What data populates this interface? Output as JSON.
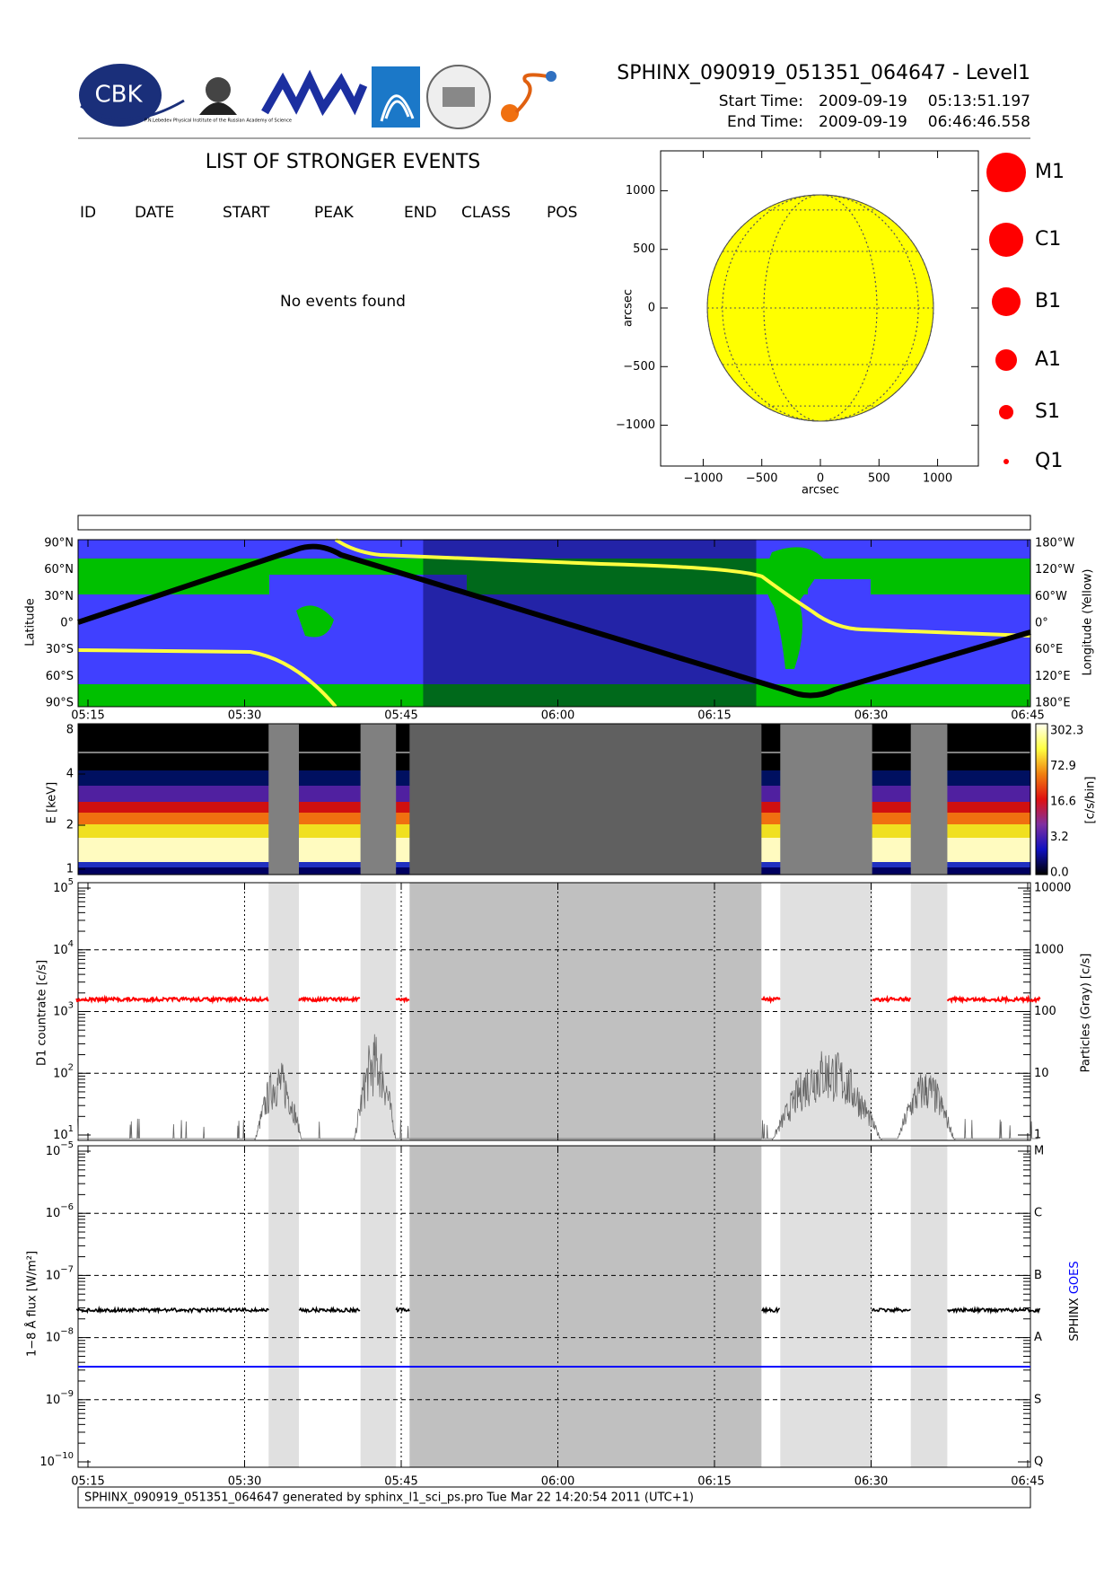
{
  "header": {
    "logo_text": "CBK",
    "lebedev_text": "P.N.Lebedev Physical Institute of the Russian Academy of Science",
    "title": "SPHINX_090919_051351_064647 - Level1",
    "start_label": "Start Time:",
    "start_date": "2009-09-19",
    "start_time": "05:13:51.197",
    "end_label": "End Time:",
    "end_date": "2009-09-19",
    "end_time": "06:46:46.558"
  },
  "events": {
    "title": "LIST OF STRONGER EVENTS",
    "columns": [
      "ID",
      "DATE",
      "START",
      "PEAK",
      "END",
      "CLASS",
      "POS"
    ],
    "message": "No events found"
  },
  "sun_map": {
    "yticks": [
      "1000",
      "500",
      "0",
      "−500",
      "−1000"
    ],
    "xticks": [
      "−1000",
      "−500",
      "0",
      "500",
      "1000"
    ],
    "xlabel": "arcsec",
    "ylabel": "arcsec",
    "classes": [
      "M1",
      "C1",
      "B1",
      "A1",
      "S1",
      "Q1"
    ]
  },
  "time_ticks": [
    "05:15",
    "05:30",
    "05:45",
    "06:00",
    "06:15",
    "06:30",
    "06:45"
  ],
  "orbit": {
    "lat_ticks": [
      "90°N",
      "60°N",
      "30°N",
      "0°",
      "30°S",
      "60°S",
      "90°S"
    ],
    "lon_ticks": [
      "180°W",
      "120°W",
      "60°W",
      "0°",
      "60°E",
      "120°E",
      "180°E"
    ],
    "ylabel": "Latitude",
    "y2label": "Longitude (Yellow)"
  },
  "spectrogram": {
    "yticks": [
      "8",
      "4",
      "2",
      "1"
    ],
    "ylabel": "E [keV]",
    "colorbar_ticks": [
      "302.3",
      "72.9",
      "16.6",
      "3.2",
      "0.0"
    ],
    "colorbar_label": "[c/s/bin]"
  },
  "countrate": {
    "yticks": [
      {
        "base": "10",
        "exp": "5"
      },
      {
        "base": "10",
        "exp": "4"
      },
      {
        "base": "10",
        "exp": "3"
      },
      {
        "base": "10",
        "exp": "2"
      },
      {
        "base": "10",
        "exp": "1"
      }
    ],
    "y2ticks": [
      "10000",
      "1000",
      "100",
      "10",
      "1"
    ],
    "ylabel": "D1 countrate [c/s]",
    "y2label": "Particles (Gray) [c/s]"
  },
  "flux": {
    "yticks": [
      {
        "base": "10",
        "exp": "−5"
      },
      {
        "base": "10",
        "exp": "−6"
      },
      {
        "base": "10",
        "exp": "−7"
      },
      {
        "base": "10",
        "exp": "−8"
      },
      {
        "base": "10",
        "exp": "−9"
      },
      {
        "base": "10",
        "exp": "−10"
      }
    ],
    "y2ticks": [
      "M",
      "C",
      "B",
      "A",
      "S",
      "Q"
    ],
    "ylabel": "1−8 Å flux [W/m²]",
    "legend_sphinx": "SPHINX",
    "legend_goes": "GOES"
  },
  "footer": "SPHINX_090919_051351_064647 generated by sphinx_l1_sci_ps.pro Tue Mar 22 14:20:54 2011 (UTC+1)"
}
